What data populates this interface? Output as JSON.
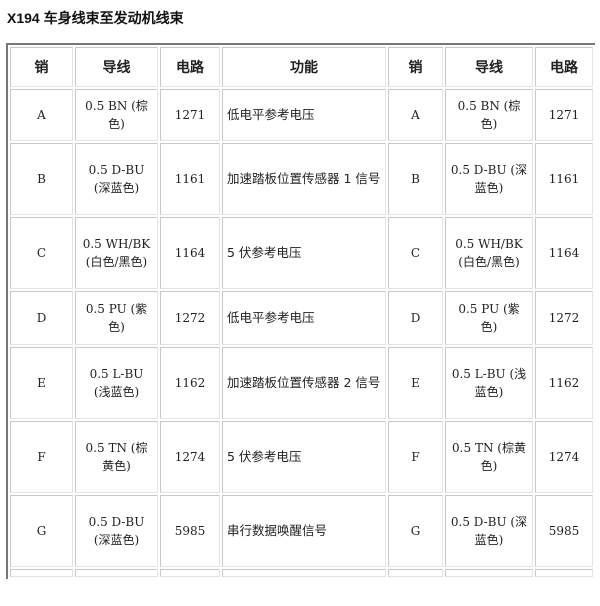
{
  "title": "X194 车身线束至发动机线束",
  "headers": [
    "销",
    "导线",
    "电路",
    "功能",
    "销",
    "导线",
    "电路"
  ],
  "rows": [
    {
      "pin": "A",
      "wire": "0.5 BN (棕色)",
      "circuit": "1271",
      "function": "低电平参考电压",
      "height": 52
    },
    {
      "pin": "B",
      "wire": "0.5 D-BU (深蓝色)",
      "circuit": "1161",
      "function": "加速踏板位置传感器 1 信号",
      "height": 72
    },
    {
      "pin": "C",
      "wire": "0.5 WH/BK (白色/黑色)",
      "circuit": "1164",
      "function": "5 伏参考电压",
      "height": 72
    },
    {
      "pin": "D",
      "wire": "0.5 PU (紫色)",
      "circuit": "1272",
      "function": "低电平参考电压",
      "height": 54
    },
    {
      "pin": "E",
      "wire": "0.5 L-BU (浅蓝色)",
      "circuit": "1162",
      "function": "加速踏板位置传感器 2 信号",
      "height": 72
    },
    {
      "pin": "F",
      "wire": "0.5 TN (棕黄色)",
      "circuit": "1274",
      "function": "5 伏参考电压",
      "height": 72
    },
    {
      "pin": "G",
      "wire": "0.5 D-BU (深蓝色)",
      "circuit": "5985",
      "function": "串行数据唤醒信号",
      "height": 72
    }
  ]
}
